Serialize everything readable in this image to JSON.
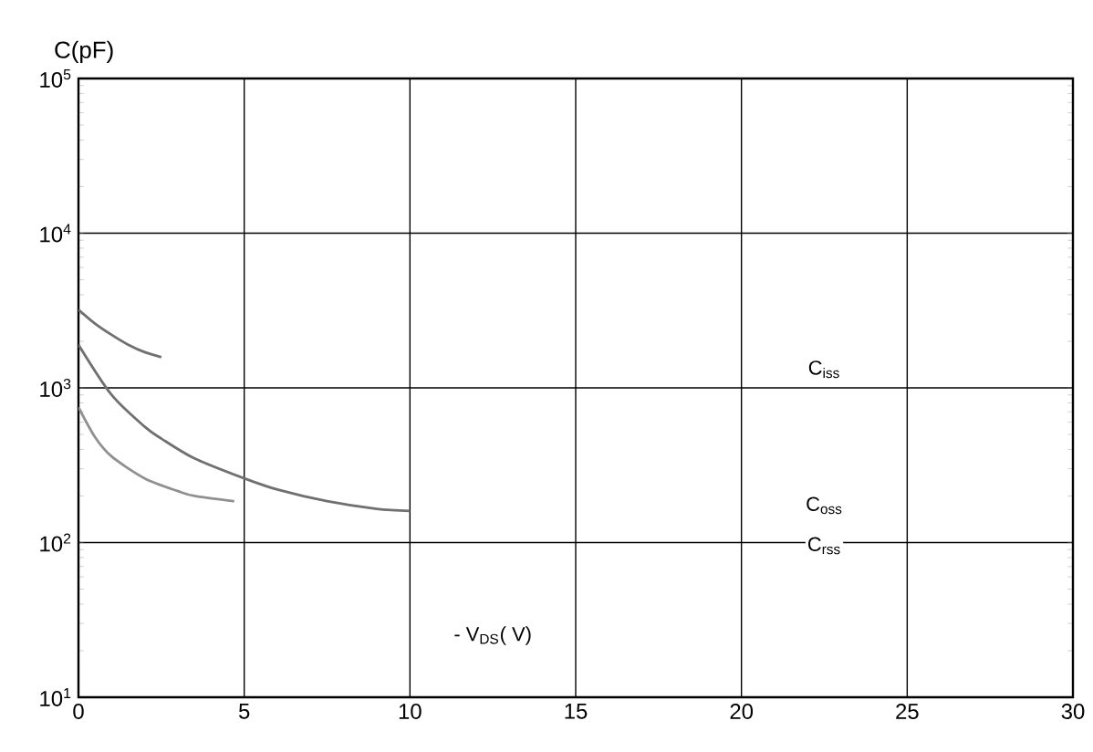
{
  "chart_data": {
    "type": "line",
    "xlabel": "- V$_{DS}$( V)",
    "ylabel": "C(pF)",
    "log": "y",
    "xlim": [
      0,
      30
    ],
    "xticks": [
      0,
      5,
      10,
      15,
      20,
      25,
      30
    ],
    "ylim": [
      10,
      100000
    ],
    "yticks": [
      {
        "value": 10,
        "label": "10$^{1}$"
      },
      {
        "value": 100,
        "label": "10$^{2}$"
      },
      {
        "value": 1000,
        "label": "10$^{3}$"
      },
      {
        "value": 10000,
        "label": "10$^{4}$"
      },
      {
        "value": 100000,
        "label": "10$^{5}$"
      }
    ],
    "grid": true,
    "marker": "none",
    "line_style": "solid",
    "series": [
      {
        "color": "#707070",
        "x": [
          0,
          0.5,
          1,
          1.5,
          2,
          2.5
        ],
        "values": [
          3200,
          2600,
          2200,
          1900,
          1700,
          1580
        ]
      },
      {
        "color": "#707070",
        "x": [
          0,
          1,
          2,
          2.5,
          3.5,
          5,
          6,
          7.5,
          9,
          10
        ],
        "values": [
          1900,
          900,
          560,
          470,
          350,
          260,
          220,
          185,
          165,
          160
        ]
      },
      {
        "color": "#909090",
        "x": [
          0,
          0.5,
          1,
          2,
          3,
          3.5,
          4.7
        ],
        "values": [
          750,
          480,
          360,
          260,
          215,
          200,
          185
        ]
      }
    ],
    "annotations": [
      "C$_{iss}$",
      "C$_{oss}$",
      "C$_{rss}$"
    ]
  }
}
